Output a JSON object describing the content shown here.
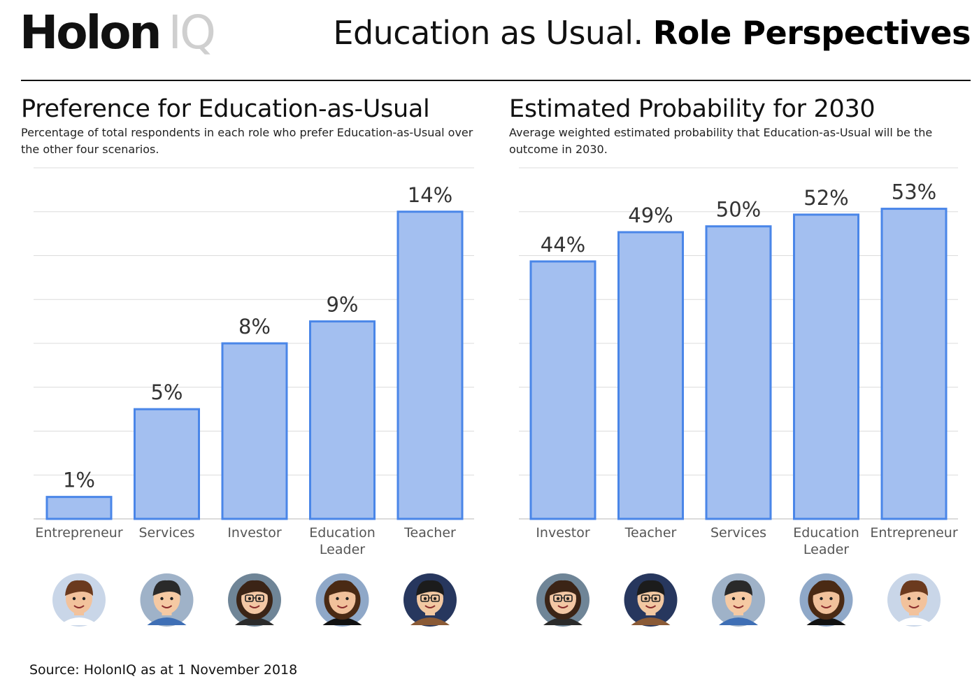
{
  "header": {
    "brand_main": "Holon",
    "brand_sub": "IQ",
    "title_light": "Education as Usual.",
    "title_bold": "Role Perspectives"
  },
  "colors": {
    "bar_fill": "#a3bff0",
    "bar_stroke": "#4a86e8",
    "grid": "#dcdcdc",
    "text": "#111111"
  },
  "panels": [
    {
      "title": "Preference for Education-as-Usual",
      "subtitle": "Percentage of total respondents in each role who prefer Education-as-Usual over the other  four scenarios."
    },
    {
      "title": "Estimated Probability for 2030",
      "subtitle": "Average weighted estimated probability that Education-as-Usual will  be the outcome in 2030."
    }
  ],
  "chart_data": [
    {
      "type": "bar",
      "title": "Preference for Education-as-Usual",
      "categories": [
        "Entrepreneur",
        "Services",
        "Investor",
        "Education Leader",
        "Teacher"
      ],
      "category_lines": [
        [
          "Entrepreneur"
        ],
        [
          "Services"
        ],
        [
          "Investor"
        ],
        [
          "Education",
          "Leader"
        ],
        [
          "Teacher"
        ]
      ],
      "values": [
        1,
        5,
        8,
        9,
        14
      ],
      "value_labels": [
        "1%",
        "5%",
        "8%",
        "9%",
        "14%"
      ],
      "avatars": [
        "boy-avatar-icon",
        "man-avatar-icon",
        "woman-glasses-avatar-icon",
        "woman-curly-avatar-icon",
        "man-glasses-avatar-icon"
      ],
      "ylim": [
        0,
        16
      ],
      "grid": true,
      "xlabel": "",
      "ylabel": ""
    },
    {
      "type": "bar",
      "title": "Estimated Probability for 2030",
      "categories": [
        "Investor",
        "Teacher",
        "Services",
        "Education Leader",
        "Entrepreneur"
      ],
      "category_lines": [
        [
          "Investor"
        ],
        [
          "Teacher"
        ],
        [
          "Services"
        ],
        [
          "Education",
          "Leader"
        ],
        [
          "Entrepreneur"
        ]
      ],
      "values": [
        44,
        49,
        50,
        52,
        53
      ],
      "value_labels": [
        "44%",
        "49%",
        "50%",
        "52%",
        "53%"
      ],
      "avatars": [
        "woman-glasses-avatar-icon",
        "man-glasses-avatar-icon",
        "man-avatar-icon",
        "woman-curly-avatar-icon",
        "boy-avatar-icon"
      ],
      "ylim": [
        0,
        60
      ],
      "grid": true,
      "xlabel": "",
      "ylabel": ""
    }
  ],
  "footer": {
    "source": "Source: HolonIQ as at 1 November 2018"
  }
}
